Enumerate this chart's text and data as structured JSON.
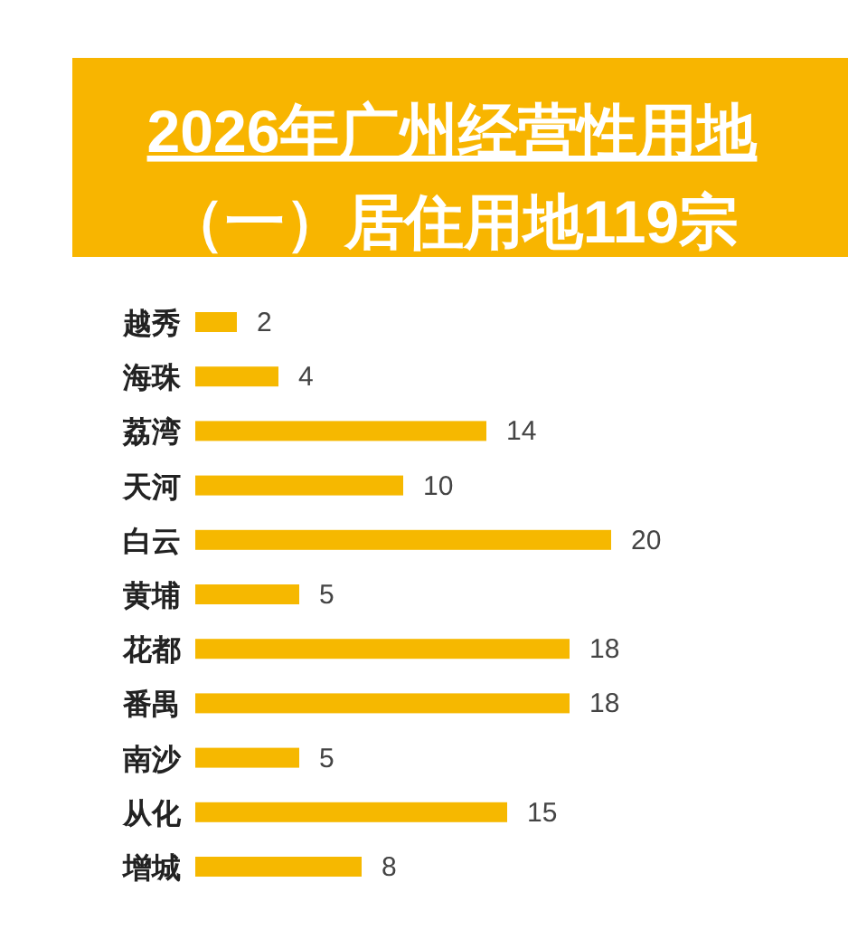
{
  "chart_data": {
    "type": "bar",
    "orientation": "horizontal",
    "title": "2026年广州经营性用地",
    "subtitle": "（一）居住用地119宗",
    "categories": [
      "越秀",
      "海珠",
      "荔湾",
      "天河",
      "白云",
      "黄埔",
      "花都",
      "番禺",
      "南沙",
      "从化",
      "增城"
    ],
    "values": [
      2,
      4,
      14,
      10,
      20,
      5,
      18,
      18,
      5,
      15,
      8
    ],
    "color": "#f6b800",
    "data_labels": true
  }
}
